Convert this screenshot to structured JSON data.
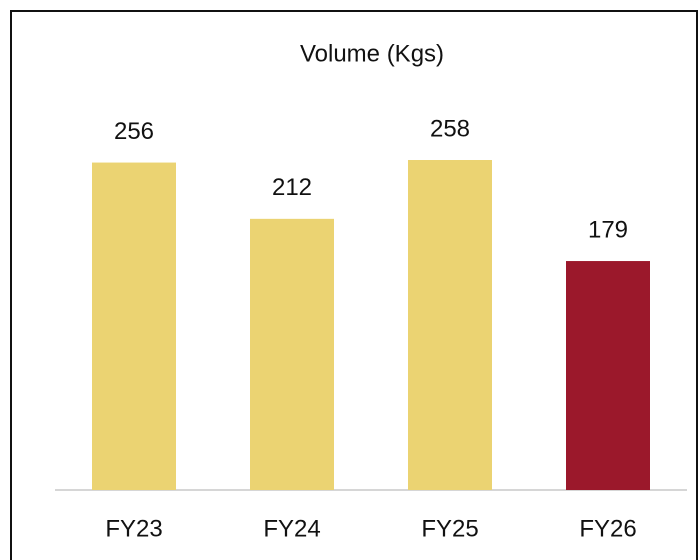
{
  "chart_data": {
    "type": "bar",
    "title": "Volume (Kgs)",
    "categories": [
      "FY23",
      "FY24",
      "FY25",
      "FY26"
    ],
    "values": [
      256,
      212,
      258,
      179
    ],
    "colors": [
      "#ebd372",
      "#ebd372",
      "#ebd372",
      "#9b182b"
    ]
  }
}
